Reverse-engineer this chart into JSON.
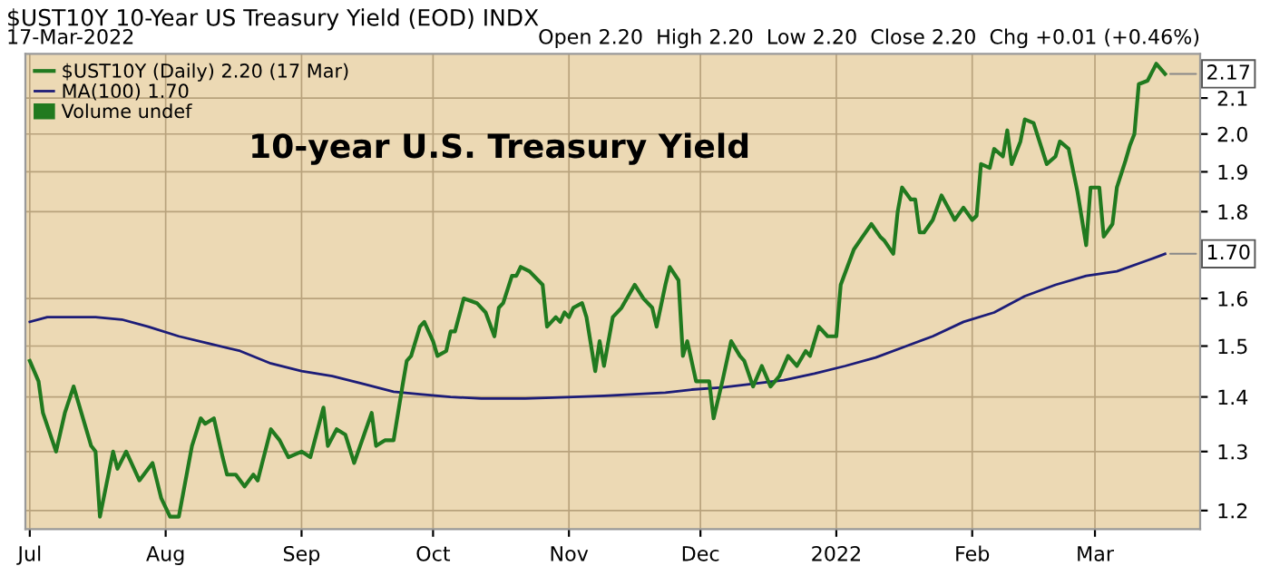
{
  "chart_data": {
    "type": "line",
    "title": "$UST10Y 10-Year US Treasury Yield (EOD) INDX",
    "subtitle": "17-Mar-2022",
    "annotations": [
      "Open 2.20  High 2.20  Low 2.20  Close 2.20  Chg +0.01 (+0.46%)",
      "Volume undef",
      "10-year U.S. Treasury Yield",
      {
        "text": "2.17",
        "x": "2022-03-17",
        "y": 2.17
      },
      {
        "text": "1.70",
        "x": "2022-03-17",
        "y": 1.7
      }
    ],
    "log": true,
    "grid": true,
    "legend": "top left",
    "xlim": [
      "2021-06-30",
      "2022-03-25"
    ],
    "xticks": [
      {
        "value": "2021-07-01",
        "label": "Jul"
      },
      {
        "value": "2021-08-01",
        "label": "Aug"
      },
      {
        "value": "2021-09-01",
        "label": "Sep"
      },
      {
        "value": "2021-10-01",
        "label": "Oct"
      },
      {
        "value": "2021-11-01",
        "label": "Nov"
      },
      {
        "value": "2021-12-01",
        "label": "Dec"
      },
      {
        "value": "2022-01-01",
        "label": "2022"
      },
      {
        "value": "2022-02-01",
        "label": "Feb"
      },
      {
        "value": "2022-03-01",
        "label": "Mar"
      }
    ],
    "ylim": [
      1.17,
      2.23
    ],
    "yticks": [
      1.2,
      1.3,
      1.4,
      1.5,
      1.6,
      1.8,
      1.9,
      {
        "value": 2.0,
        "label": "2.0"
      },
      2.1
    ],
    "series": [
      {
        "name": "$UST10Y (Daily) 2.20 (17 Mar)",
        "color": "#217a1f",
        "x": [
          "2021-07-01",
          "2021-07-03",
          "2021-07-04",
          "2021-07-07",
          "2021-07-09",
          "2021-07-11",
          "2021-07-15",
          "2021-07-16",
          "2021-07-17",
          "2021-07-20",
          "2021-07-21",
          "2021-07-23",
          "2021-07-26",
          "2021-07-29",
          "2021-07-31",
          "2021-08-02",
          "2021-08-04",
          "2021-08-07",
          "2021-08-09",
          "2021-08-10",
          "2021-08-12",
          "2021-08-14",
          "2021-08-15",
          "2021-08-17",
          "2021-08-19",
          "2021-08-21",
          "2021-08-22",
          "2021-08-25",
          "2021-08-27",
          "2021-08-29",
          "2021-09-01",
          "2021-09-03",
          "2021-09-06",
          "2021-09-07",
          "2021-09-09",
          "2021-09-11",
          "2021-09-13",
          "2021-09-17",
          "2021-09-18",
          "2021-09-20",
          "2021-09-22",
          "2021-09-24",
          "2021-09-25",
          "2021-09-26",
          "2021-09-28",
          "2021-09-29",
          "2021-10-01",
          "2021-10-02",
          "2021-10-04",
          "2021-10-05",
          "2021-10-06",
          "2021-10-08",
          "2021-10-11",
          "2021-10-13",
          "2021-10-15",
          "2021-10-16",
          "2021-10-17",
          "2021-10-19",
          "2021-10-20",
          "2021-10-21",
          "2021-10-23",
          "2021-10-26",
          "2021-10-27",
          "2021-10-29",
          "2021-10-30",
          "2021-10-31",
          "2021-11-01",
          "2021-11-02",
          "2021-11-04",
          "2021-11-05",
          "2021-11-07",
          "2021-11-08",
          "2021-11-09",
          "2021-11-11",
          "2021-11-13",
          "2021-11-16",
          "2021-11-18",
          "2021-11-20",
          "2021-11-21",
          "2021-11-23",
          "2021-11-24",
          "2021-11-26",
          "2021-11-27",
          "2021-11-28",
          "2021-11-30",
          "2021-12-03",
          "2021-12-04",
          "2021-12-06",
          "2021-12-08",
          "2021-12-10",
          "2021-12-11",
          "2021-12-13",
          "2021-12-15",
          "2021-12-17",
          "2021-12-19",
          "2021-12-21",
          "2021-12-23",
          "2021-12-25",
          "2021-12-26",
          "2021-12-28",
          "2021-12-30",
          "2022-01-01",
          "2022-01-02",
          "2022-01-05",
          "2022-01-07",
          "2022-01-09",
          "2022-01-11",
          "2022-01-12",
          "2022-01-14",
          "2022-01-15",
          "2022-01-16",
          "2022-01-18",
          "2022-01-19",
          "2022-01-20",
          "2022-01-21",
          "2022-01-23",
          "2022-01-25",
          "2022-01-27",
          "2022-01-28",
          "2022-01-30",
          "2022-02-01",
          "2022-02-02",
          "2022-02-03",
          "2022-02-05",
          "2022-02-06",
          "2022-02-08",
          "2022-02-09",
          "2022-02-10",
          "2022-02-12",
          "2022-02-13",
          "2022-02-15",
          "2022-02-18",
          "2022-02-20",
          "2022-02-21",
          "2022-02-23",
          "2022-02-25",
          "2022-02-27",
          "2022-02-28",
          "2022-03-02",
          "2022-03-03",
          "2022-03-05",
          "2022-03-06",
          "2022-03-08",
          "2022-03-09",
          "2022-03-10",
          "2022-03-11",
          "2022-03-13",
          "2022-03-15",
          "2022-03-17"
        ],
        "values": [
          1.47,
          1.43,
          1.37,
          1.3,
          1.37,
          1.42,
          1.31,
          1.3,
          1.19,
          1.3,
          1.27,
          1.3,
          1.25,
          1.28,
          1.22,
          1.19,
          1.19,
          1.31,
          1.36,
          1.35,
          1.36,
          1.29,
          1.26,
          1.26,
          1.24,
          1.26,
          1.25,
          1.34,
          1.32,
          1.29,
          1.3,
          1.29,
          1.38,
          1.31,
          1.34,
          1.33,
          1.28,
          1.37,
          1.31,
          1.32,
          1.32,
          1.42,
          1.47,
          1.48,
          1.54,
          1.55,
          1.51,
          1.48,
          1.49,
          1.53,
          1.53,
          1.6,
          1.59,
          1.57,
          1.52,
          1.58,
          1.59,
          1.65,
          1.65,
          1.67,
          1.66,
          1.63,
          1.54,
          1.56,
          1.55,
          1.57,
          1.56,
          1.58,
          1.59,
          1.56,
          1.45,
          1.51,
          1.46,
          1.56,
          1.58,
          1.63,
          1.6,
          1.58,
          1.54,
          1.63,
          1.67,
          1.64,
          1.48,
          1.51,
          1.43,
          1.43,
          1.36,
          1.43,
          1.51,
          1.48,
          1.47,
          1.42,
          1.46,
          1.42,
          1.44,
          1.48,
          1.46,
          1.49,
          1.48,
          1.54,
          1.52,
          1.52,
          1.63,
          1.71,
          1.74,
          1.77,
          1.74,
          1.73,
          1.7,
          1.8,
          1.86,
          1.83,
          1.83,
          1.75,
          1.75,
          1.78,
          1.84,
          1.8,
          1.78,
          1.81,
          1.78,
          1.79,
          1.92,
          1.91,
          1.96,
          1.94,
          2.01,
          1.92,
          1.98,
          2.04,
          2.03,
          1.92,
          1.94,
          1.98,
          1.96,
          1.85,
          1.72,
          1.86,
          1.86,
          1.74,
          1.77,
          1.86,
          1.93,
          1.97,
          2.0,
          2.14,
          2.15,
          2.2,
          2.17
        ]
      },
      {
        "name": "MA(100) 1.70",
        "color": "#1c1c78",
        "x": [
          "2021-07-01",
          "2021-07-05",
          "2021-07-16",
          "2021-07-22",
          "2021-07-28",
          "2021-08-04",
          "2021-08-11",
          "2021-08-18",
          "2021-08-25",
          "2021-09-01",
          "2021-09-08",
          "2021-09-15",
          "2021-09-22",
          "2021-09-28",
          "2021-10-05",
          "2021-10-12",
          "2021-10-22",
          "2021-11-02",
          "2021-11-09",
          "2021-11-16",
          "2021-11-23",
          "2021-11-29",
          "2021-12-06",
          "2021-12-13",
          "2021-12-20",
          "2021-12-27",
          "2022-01-03",
          "2022-01-10",
          "2022-01-17",
          "2022-01-23",
          "2022-01-30",
          "2022-02-06",
          "2022-02-13",
          "2022-02-20",
          "2022-02-27",
          "2022-03-06",
          "2022-03-13",
          "2022-03-17"
        ],
        "values": [
          1.55,
          1.56,
          1.56,
          1.555,
          1.54,
          1.52,
          1.505,
          1.49,
          1.465,
          1.45,
          1.44,
          1.425,
          1.41,
          1.405,
          1.4,
          1.397,
          1.397,
          1.4,
          1.402,
          1.405,
          1.408,
          1.414,
          1.418,
          1.425,
          1.432,
          1.445,
          1.46,
          1.477,
          1.5,
          1.52,
          1.55,
          1.57,
          1.605,
          1.63,
          1.65,
          1.66,
          1.685,
          1.7
        ]
      }
    ]
  }
}
